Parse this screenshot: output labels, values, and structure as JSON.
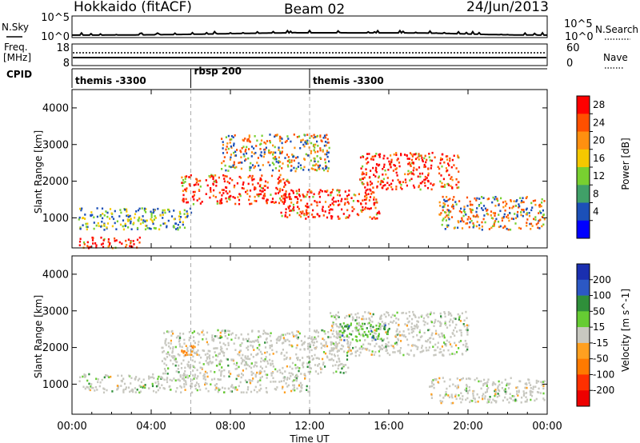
{
  "header": {
    "station": "Hokkaido (fitACF)",
    "beam": "Beam 02",
    "date": "24/Jun/2013"
  },
  "noise_panel": {
    "left_label": "N.Sky",
    "left_ticks": [
      "10^5",
      "10^0"
    ],
    "right_ticks": [
      "10^5",
      "10^0"
    ],
    "right_label": "N.Search"
  },
  "freq_panel": {
    "label_line1": "Freq.",
    "label_line2": "[MHz]",
    "left_ticks": [
      "18",
      "8"
    ],
    "right_ticks": [
      "60",
      "0"
    ],
    "right_label": "Nave"
  },
  "cpid_panel": {
    "label": "CPID",
    "segments": [
      {
        "label": "themis -3300",
        "start": "00:00"
      },
      {
        "label": "rbsp 200",
        "start": "06:00"
      },
      {
        "label": "themis -3300",
        "start": "12:00"
      }
    ]
  },
  "x_axis": {
    "title": "Time UT",
    "ticks": [
      "00:00",
      "04:00",
      "08:00",
      "12:00",
      "16:00",
      "20:00",
      "00:00"
    ],
    "range_hours": [
      0,
      24
    ]
  },
  "y_axis": {
    "title": "Slant Range [km]",
    "ticks": [
      1000,
      2000,
      3000,
      4000
    ],
    "range_km": [
      180,
      4500
    ]
  },
  "power_colorbar": {
    "title": "Power [dB]",
    "tick_labels": [
      "28",
      "24",
      "20",
      "16",
      "12",
      "8",
      "4"
    ],
    "colors": [
      "#ff0000",
      "#ff5000",
      "#ff9010",
      "#f5c800",
      "#78d030",
      "#40a068",
      "#1c50b8",
      "#0000ff"
    ]
  },
  "velocity_colorbar": {
    "title": "Velocity [m s^-1]",
    "tick_labels": [
      "200",
      "100",
      "50",
      "15",
      "-15",
      "-50",
      "-100",
      "-200"
    ],
    "colors": [
      "#1a2fb0",
      "#2c58c4",
      "#2f8f3a",
      "#66cc33",
      "#c8c8c0",
      "#ffa020",
      "#ff7a00",
      "#ff3000",
      "#ee0000"
    ]
  },
  "chart_data": {
    "type": "heatmap",
    "panels": [
      {
        "name": "Power",
        "unit": "dB",
        "scatter_bands": [
          {
            "t0": 0.3,
            "t1": 3.5,
            "r0": 200,
            "r1": 500,
            "level": "high"
          },
          {
            "t0": 0.3,
            "t1": 6.0,
            "r0": 700,
            "r1": 1300,
            "level": "low"
          },
          {
            "t0": 5.5,
            "t1": 11.0,
            "r0": 1400,
            "r1": 2200,
            "level": "high"
          },
          {
            "t0": 7.5,
            "t1": 13.0,
            "r0": 2300,
            "r1": 3300,
            "level": "mid"
          },
          {
            "t0": 10.5,
            "t1": 15.5,
            "r0": 1000,
            "r1": 1800,
            "level": "high"
          },
          {
            "t0": 14.5,
            "t1": 19.5,
            "r0": 1800,
            "r1": 2800,
            "level": "high"
          },
          {
            "t0": 18.5,
            "t1": 23.9,
            "r0": 700,
            "r1": 1600,
            "level": "mid"
          }
        ]
      },
      {
        "name": "Velocity",
        "unit": "m s^-1",
        "scatter_bands": [
          {
            "t0": 0.3,
            "t1": 12.0,
            "r0": 800,
            "r1": 1300,
            "level": "near-zero"
          },
          {
            "t0": 4.5,
            "t1": 14.0,
            "r0": 1300,
            "r1": 2500,
            "level": "near-zero"
          },
          {
            "t0": 13.0,
            "t1": 20.0,
            "r0": 1800,
            "r1": 3000,
            "level": "near-zero"
          },
          {
            "t0": 18.0,
            "t1": 23.9,
            "r0": 500,
            "r1": 1200,
            "level": "near-zero"
          },
          {
            "t0": 5.5,
            "t1": 6.5,
            "r0": 1800,
            "r1": 2100,
            "level": "negative"
          },
          {
            "t0": 13.5,
            "t1": 16.0,
            "r0": 2200,
            "r1": 2700,
            "level": "positive"
          }
        ]
      }
    ]
  }
}
